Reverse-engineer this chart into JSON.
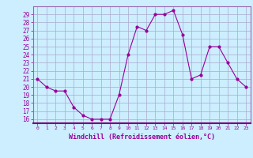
{
  "x": [
    0,
    1,
    2,
    3,
    4,
    5,
    6,
    7,
    8,
    9,
    10,
    11,
    12,
    13,
    14,
    15,
    16,
    17,
    18,
    19,
    20,
    21,
    22,
    23
  ],
  "y": [
    21,
    20,
    19.5,
    19.5,
    17.5,
    16.5,
    16,
    16,
    16,
    19,
    24,
    27.5,
    27,
    29,
    29,
    29.5,
    26.5,
    21,
    21.5,
    25,
    25,
    23,
    21,
    20
  ],
  "line_color": "#990099",
  "marker_color": "#990099",
  "bg_color": "#cceeff",
  "grid_color": "#aaaacc",
  "xlabel": "Windchill (Refroidissement éolien,°C)",
  "xlabel_color": "#990099",
  "tick_color": "#990099",
  "spine_color": "#9966aa",
  "ylim": [
    15.5,
    30
  ],
  "xlim": [
    -0.5,
    23.5
  ],
  "yticks": [
    16,
    17,
    18,
    19,
    20,
    21,
    22,
    23,
    24,
    25,
    26,
    27,
    28,
    29
  ],
  "xticks": [
    0,
    1,
    2,
    3,
    4,
    5,
    6,
    7,
    8,
    9,
    10,
    11,
    12,
    13,
    14,
    15,
    16,
    17,
    18,
    19,
    20,
    21,
    22,
    23
  ]
}
